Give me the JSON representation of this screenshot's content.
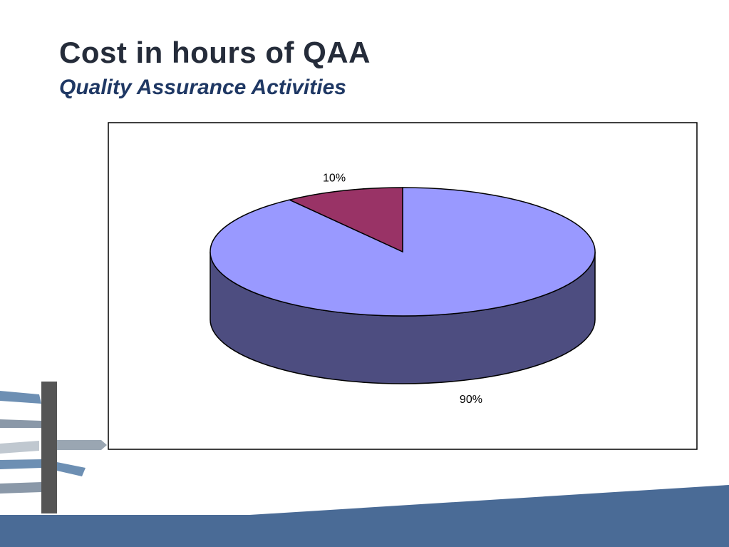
{
  "chart_data": {
    "type": "pie",
    "title": "Cost in hours of QAA",
    "subtitle": "Quality Assurance Activities",
    "values": [
      90,
      10
    ],
    "value_labels": [
      "90%",
      "10%"
    ],
    "colors": [
      "#9999ff",
      "#993366"
    ],
    "side_colors": [
      "#4d4d80",
      "#5c1f3d"
    ]
  }
}
